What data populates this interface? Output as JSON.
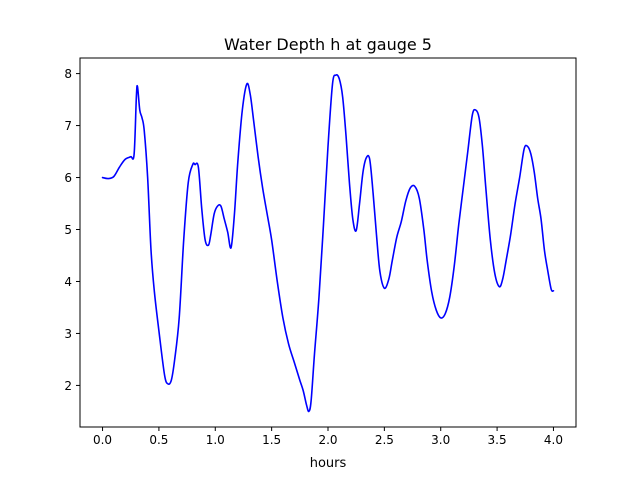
{
  "chart_data": {
    "type": "line",
    "title": "Water Depth h at gauge 5",
    "xlabel": "hours",
    "ylabel": "",
    "xlim": [
      -0.2,
      4.2
    ],
    "ylim": [
      1.2,
      8.3
    ],
    "xticks": [
      0.0,
      0.5,
      1.0,
      1.5,
      2.0,
      2.5,
      3.0,
      3.5,
      4.0
    ],
    "xtick_labels": [
      "0.0",
      "0.5",
      "1.0",
      "1.5",
      "2.0",
      "2.5",
      "3.0",
      "3.5",
      "4.0"
    ],
    "yticks": [
      2,
      3,
      4,
      5,
      6,
      7,
      8
    ],
    "ytick_labels": [
      "2",
      "3",
      "4",
      "5",
      "6",
      "7",
      "8"
    ],
    "grid": false,
    "legend": "none",
    "series": [
      {
        "color": "#0000ff",
        "x": [
          0.0,
          0.05,
          0.1,
          0.15,
          0.2,
          0.25,
          0.28,
          0.3,
          0.31,
          0.33,
          0.35,
          0.37,
          0.4,
          0.43,
          0.46,
          0.5,
          0.55,
          0.58,
          0.61,
          0.64,
          0.68,
          0.72,
          0.76,
          0.8,
          0.82,
          0.85,
          0.88,
          0.91,
          0.94,
          0.96,
          0.99,
          1.02,
          1.05,
          1.08,
          1.11,
          1.14,
          1.17,
          1.2,
          1.24,
          1.28,
          1.31,
          1.34,
          1.38,
          1.42,
          1.46,
          1.5,
          1.55,
          1.6,
          1.65,
          1.7,
          1.75,
          1.78,
          1.81,
          1.83,
          1.85,
          1.88,
          1.92,
          1.96,
          2.0,
          2.04,
          2.07,
          2.1,
          2.13,
          2.16,
          2.19,
          2.22,
          2.25,
          2.28,
          2.31,
          2.34,
          2.37,
          2.4,
          2.43,
          2.46,
          2.5,
          2.54,
          2.57,
          2.61,
          2.65,
          2.69,
          2.73,
          2.77,
          2.81,
          2.85,
          2.88,
          2.92,
          2.96,
          3.0,
          3.04,
          3.08,
          3.12,
          3.16,
          3.2,
          3.24,
          3.28,
          3.31,
          3.34,
          3.37,
          3.4,
          3.44,
          3.48,
          3.52,
          3.55,
          3.58,
          3.62,
          3.66,
          3.7,
          3.74,
          3.77,
          3.8,
          3.83,
          3.86,
          3.89,
          3.92,
          3.95,
          3.98,
          4.0
        ],
        "y": [
          6.0,
          5.98,
          6.02,
          6.2,
          6.35,
          6.4,
          6.45,
          7.55,
          7.75,
          7.3,
          7.15,
          6.9,
          6.0,
          4.6,
          3.8,
          3.05,
          2.2,
          2.03,
          2.1,
          2.5,
          3.3,
          4.8,
          5.9,
          6.25,
          6.25,
          6.2,
          5.4,
          4.8,
          4.7,
          4.9,
          5.3,
          5.45,
          5.45,
          5.2,
          4.95,
          4.65,
          5.3,
          6.3,
          7.3,
          7.8,
          7.6,
          7.1,
          6.4,
          5.8,
          5.3,
          4.8,
          4.0,
          3.3,
          2.8,
          2.45,
          2.1,
          1.9,
          1.62,
          1.5,
          1.7,
          2.6,
          3.7,
          5.1,
          6.6,
          7.8,
          7.97,
          7.9,
          7.55,
          6.8,
          5.9,
          5.2,
          4.98,
          5.5,
          6.1,
          6.38,
          6.35,
          5.7,
          4.9,
          4.2,
          3.87,
          4.05,
          4.4,
          4.85,
          5.15,
          5.55,
          5.8,
          5.83,
          5.6,
          5.0,
          4.4,
          3.8,
          3.45,
          3.3,
          3.38,
          3.7,
          4.3,
          5.1,
          5.8,
          6.5,
          7.2,
          7.3,
          7.15,
          6.6,
          5.8,
          4.8,
          4.15,
          3.9,
          4.05,
          4.4,
          4.9,
          5.5,
          6.0,
          6.55,
          6.6,
          6.45,
          6.1,
          5.6,
          5.2,
          4.6,
          4.2,
          3.85,
          3.82
        ]
      }
    ]
  }
}
